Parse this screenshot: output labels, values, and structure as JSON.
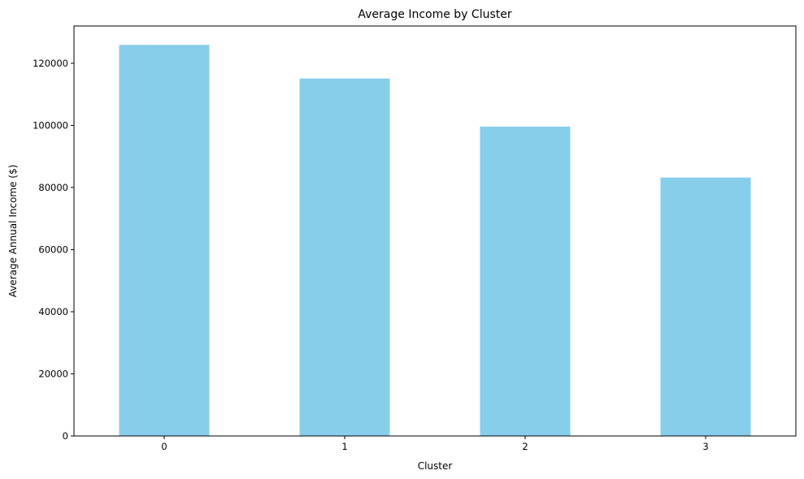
{
  "chart_data": {
    "type": "bar",
    "title": "Average Income by Cluster",
    "xlabel": "Cluster",
    "ylabel": "Average Annual Income ($)",
    "categories": [
      "0",
      "1",
      "2",
      "3"
    ],
    "values": [
      125900,
      115100,
      99600,
      83200
    ],
    "ylim": [
      0,
      132000
    ],
    "yticks": [
      0,
      20000,
      40000,
      60000,
      80000,
      100000,
      120000
    ],
    "bar_color": "#87ceeb",
    "grid": false,
    "legend": false
  }
}
